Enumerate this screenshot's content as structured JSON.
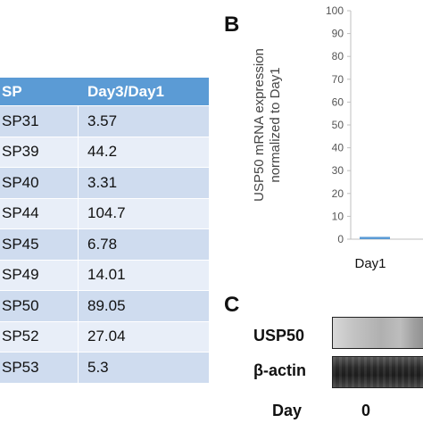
{
  "table": {
    "header": {
      "col1": "SP",
      "col2": "Day3/Day1"
    },
    "rows": [
      {
        "id": "SP31",
        "value": "3.57"
      },
      {
        "id": "SP39",
        "value": "44.2"
      },
      {
        "id": "SP40",
        "value": "3.31"
      },
      {
        "id": "SP44",
        "value": "104.7"
      },
      {
        "id": "SP45",
        "value": "6.78"
      },
      {
        "id": "SP49",
        "value": "14.01"
      },
      {
        "id": "SP50",
        "value": "89.05"
      },
      {
        "id": "SP52",
        "value": "27.04"
      },
      {
        "id": "SP53",
        "value": "5.3"
      }
    ]
  },
  "panels": {
    "b": "B",
    "c": "C"
  },
  "chart_data": {
    "type": "bar",
    "categories": [
      "Day1"
    ],
    "values": [
      1
    ],
    "ylabel_line1": "USP50 mRNA expression",
    "ylabel_line2": "normalized to Day1",
    "ylim": [
      0,
      100
    ],
    "yticks": [
      "0",
      "10",
      "20",
      "30",
      "40",
      "50",
      "60",
      "70",
      "80",
      "90",
      "100"
    ],
    "grid": false,
    "bar_color": "#5b9bd5"
  },
  "blot": {
    "usp50_label": "USP50",
    "actin_label": "β-actin",
    "day_label": "Day",
    "day_value": "0"
  }
}
